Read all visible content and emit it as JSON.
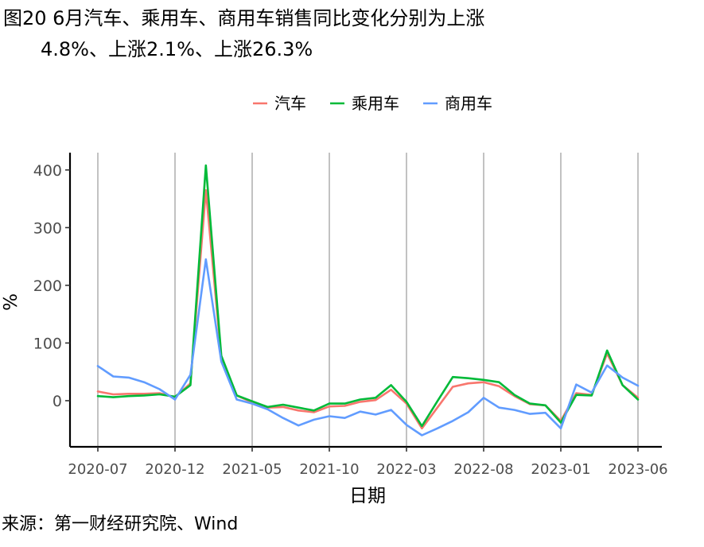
{
  "figure": {
    "title_line1": "图20 6月汽车、乘用车、商用车销售同比变化分别为上涨",
    "title_line2": "4.8%、上涨2.1%、上涨26.3%",
    "source": "来源：第一财经研究院、Wind"
  },
  "chart_data": {
    "type": "line",
    "xlabel": "日期",
    "ylabel": "%",
    "ylim": [
      -80,
      430
    ],
    "yticks": [
      0,
      100,
      200,
      300,
      400
    ],
    "xtick_labels": [
      "2020-07",
      "2020-12",
      "2021-05",
      "2021-10",
      "2022-03",
      "2022-08",
      "2023-01",
      "2023-06"
    ],
    "xtick_indices": [
      0,
      5,
      10,
      15,
      20,
      25,
      30,
      35
    ],
    "legend_position": "top",
    "grid": "vertical lines at x ticks",
    "categories": [
      "2020-07",
      "2020-08",
      "2020-09",
      "2020-10",
      "2020-11",
      "2020-12",
      "2021-01",
      "2021-02",
      "2021-03",
      "2021-04",
      "2021-05",
      "2021-06",
      "2021-07",
      "2021-08",
      "2021-09",
      "2021-10",
      "2021-11",
      "2021-12",
      "2022-01",
      "2022-02",
      "2022-03",
      "2022-04",
      "2022-05",
      "2022-06",
      "2022-07",
      "2022-08",
      "2022-09",
      "2022-10",
      "2022-11",
      "2022-12",
      "2023-01",
      "2023-02",
      "2023-03",
      "2023-04",
      "2023-05",
      "2023-06"
    ],
    "series": [
      {
        "name": "汽车",
        "color": "#F8766D",
        "values": [
          16,
          11,
          12,
          12,
          13,
          6,
          30,
          365,
          74,
          9,
          -3,
          -12,
          -11,
          -17,
          -20,
          -10,
          -9,
          -2,
          1,
          19,
          -5,
          -48,
          -12,
          24,
          30,
          32,
          25,
          8,
          -6,
          -8,
          -35,
          13,
          10,
          82,
          27,
          5
        ]
      },
      {
        "name": "乘用车",
        "color": "#00BA38",
        "values": [
          8,
          6,
          8,
          9,
          11,
          7,
          27,
          408,
          78,
          9,
          -1,
          -11,
          -7,
          -12,
          -17,
          -5,
          -5,
          2,
          5,
          27,
          -2,
          -44,
          -1,
          41,
          39,
          36,
          32,
          10,
          -5,
          -8,
          -38,
          10,
          9,
          87,
          27,
          2
        ]
      },
      {
        "name": "商用车",
        "color": "#619CFF",
        "values": [
          60,
          42,
          40,
          32,
          20,
          2,
          45,
          245,
          68,
          2,
          -5,
          -15,
          -30,
          -43,
          -33,
          -27,
          -30,
          -19,
          -24,
          -16,
          -42,
          -60,
          -48,
          -35,
          -20,
          5,
          -12,
          -16,
          -23,
          -21,
          -48,
          28,
          14,
          61,
          40,
          26
        ]
      }
    ]
  }
}
